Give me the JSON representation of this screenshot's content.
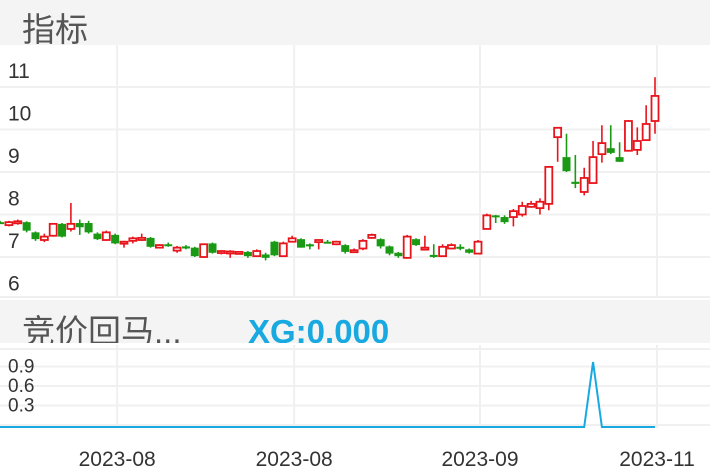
{
  "top_panel": {
    "title": "指标"
  },
  "bottom_panel": {
    "title": "竞价回马...",
    "value_label": "XG:0.000"
  },
  "colors": {
    "up": "#e8141c",
    "down": "#1a9a14",
    "line": "#19a9e1",
    "grid": "#f0f0f0",
    "header_bg": "#f4f4f4"
  },
  "chart_data": [
    {
      "type": "candlestick",
      "ylim": [
        6,
        11
      ],
      "y_ticks": [
        "11",
        "10",
        "9",
        "8",
        "7",
        "6"
      ],
      "grid": true,
      "candles_ohlc": [
        [
          7.82,
          7.85,
          7.78,
          7.8
        ],
        [
          7.75,
          7.85,
          7.72,
          7.82
        ],
        [
          7.8,
          7.88,
          7.76,
          7.84
        ],
        [
          7.82,
          7.84,
          7.58,
          7.62
        ],
        [
          7.58,
          7.6,
          7.38,
          7.42
        ],
        [
          7.4,
          7.55,
          7.35,
          7.48
        ],
        [
          7.5,
          7.8,
          7.48,
          7.78
        ],
        [
          7.78,
          7.8,
          7.46,
          7.48
        ],
        [
          7.66,
          8.27,
          7.6,
          7.78
        ],
        [
          7.8,
          7.88,
          7.52,
          7.7
        ],
        [
          7.8,
          7.85,
          7.55,
          7.58
        ],
        [
          7.55,
          7.58,
          7.4,
          7.42
        ],
        [
          7.4,
          7.62,
          7.38,
          7.58
        ],
        [
          7.52,
          7.55,
          7.3,
          7.32
        ],
        [
          7.35,
          7.38,
          7.22,
          7.36
        ],
        [
          7.38,
          7.48,
          7.32,
          7.44
        ],
        [
          7.4,
          7.55,
          7.38,
          7.45
        ],
        [
          7.45,
          7.47,
          7.22,
          7.24
        ],
        [
          7.22,
          7.3,
          7.2,
          7.28
        ],
        [
          7.3,
          7.34,
          7.24,
          7.26
        ],
        [
          7.15,
          7.26,
          7.1,
          7.22
        ],
        [
          7.25,
          7.28,
          7.18,
          7.2
        ],
        [
          7.22,
          7.24,
          7.0,
          7.02
        ],
        [
          7.0,
          7.32,
          6.98,
          7.3
        ],
        [
          7.32,
          7.34,
          7.08,
          7.1
        ],
        [
          7.12,
          7.16,
          7.06,
          7.14
        ],
        [
          7.12,
          7.16,
          6.98,
          7.13
        ],
        [
          7.1,
          7.14,
          7.06,
          7.12
        ],
        [
          7.12,
          7.14,
          6.98,
          7.02
        ],
        [
          7.02,
          7.18,
          7.0,
          7.14
        ],
        [
          7.06,
          7.1,
          6.92,
          6.98
        ],
        [
          7.36,
          7.38,
          7.02,
          7.04
        ],
        [
          7.02,
          7.36,
          7.0,
          7.32
        ],
        [
          7.36,
          7.5,
          7.34,
          7.44
        ],
        [
          7.42,
          7.44,
          7.22,
          7.22
        ],
        [
          7.3,
          7.32,
          7.18,
          7.25
        ],
        [
          7.35,
          7.41,
          7.18,
          7.4
        ],
        [
          7.36,
          7.4,
          7.32,
          7.34
        ],
        [
          7.3,
          7.38,
          7.28,
          7.36
        ],
        [
          7.28,
          7.3,
          7.08,
          7.12
        ],
        [
          7.14,
          7.2,
          7.12,
          7.16
        ],
        [
          7.2,
          7.42,
          7.16,
          7.38
        ],
        [
          7.45,
          7.55,
          7.43,
          7.52
        ],
        [
          7.42,
          7.44,
          7.2,
          7.25
        ],
        [
          7.25,
          7.27,
          7.04,
          7.08
        ],
        [
          7.1,
          7.12,
          6.98,
          7.02
        ],
        [
          6.98,
          7.52,
          6.96,
          7.48
        ],
        [
          7.42,
          7.44,
          7.26,
          7.28
        ],
        [
          7.2,
          7.5,
          7.18,
          7.22
        ],
        [
          7.05,
          7.3,
          6.98,
          7.0
        ],
        [
          7.02,
          7.3,
          7.0,
          7.24
        ],
        [
          7.2,
          7.32,
          7.18,
          7.28
        ],
        [
          7.24,
          7.3,
          7.16,
          7.22
        ],
        [
          7.18,
          7.2,
          7.08,
          7.1
        ],
        [
          7.08,
          7.4,
          7.06,
          7.36
        ],
        [
          7.66,
          8.02,
          7.66,
          7.98
        ],
        [
          7.98,
          7.99,
          7.8,
          7.95
        ],
        [
          7.94,
          7.98,
          7.78,
          7.82
        ],
        [
          7.94,
          8.13,
          7.72,
          8.08
        ],
        [
          8.0,
          8.3,
          7.95,
          8.2
        ],
        [
          8.18,
          8.32,
          8.16,
          8.25
        ],
        [
          8.15,
          8.38,
          8.0,
          8.3
        ],
        [
          8.25,
          9.14,
          8.1,
          9.12
        ],
        [
          9.82,
          10.06,
          9.24,
          10.04
        ],
        [
          9.35,
          9.9,
          9.0,
          9.02
        ],
        [
          8.77,
          9.4,
          8.62,
          8.72
        ],
        [
          8.53,
          9.1,
          8.45,
          8.86
        ],
        [
          8.74,
          9.73,
          8.74,
          9.35
        ],
        [
          9.42,
          10.1,
          9.22,
          9.68
        ],
        [
          9.56,
          10.1,
          9.42,
          9.45
        ],
        [
          9.35,
          9.7,
          9.24,
          9.24
        ],
        [
          9.5,
          10.22,
          9.48,
          10.2
        ],
        [
          9.52,
          10.05,
          9.4,
          9.73
        ],
        [
          9.75,
          10.57,
          9.75,
          10.13
        ],
        [
          10.2,
          11.23,
          9.9,
          10.79
        ]
      ]
    },
    {
      "type": "line",
      "series_name": "XG",
      "ylim": [
        0,
        1
      ],
      "y_ticks": [
        "0.9",
        "0.6",
        "0.3"
      ],
      "grid": true,
      "values": [
        0,
        0,
        0,
        0,
        0,
        0,
        0,
        0,
        0,
        0,
        0,
        0,
        0,
        0,
        0,
        0,
        0,
        0,
        0,
        0,
        0,
        0,
        0,
        0,
        0,
        0,
        0,
        0,
        0,
        0,
        0,
        0,
        0,
        0,
        0,
        0,
        0,
        0,
        0,
        0,
        0,
        0,
        0,
        0,
        0,
        0,
        0,
        0,
        0,
        0,
        0,
        0,
        0,
        0,
        0,
        0,
        0,
        0,
        0,
        0,
        0,
        0,
        0,
        0,
        0,
        0,
        0,
        1,
        0,
        0,
        0,
        0,
        0,
        0,
        0
      ]
    }
  ],
  "x_axis": {
    "tick_labels": [
      "2023-08",
      "2023-08",
      "2023-09",
      "2023-11"
    ],
    "tick_candle_index": [
      13,
      33,
      54,
      74
    ]
  }
}
